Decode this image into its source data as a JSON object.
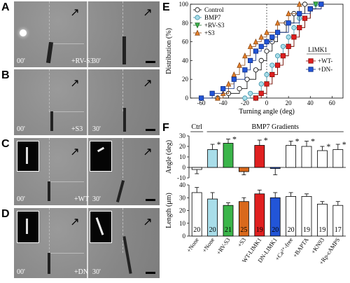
{
  "panels": {
    "A": {
      "letter": "A",
      "t0": "00'",
      "t1": "30'",
      "cond": "+RV-S3"
    },
    "B": {
      "letter": "B",
      "t0": "00'",
      "t1": "30'",
      "cond": "+S3"
    },
    "C": {
      "letter": "C",
      "t0": "00'",
      "t1": "30'",
      "cond": "+WT"
    },
    "D": {
      "letter": "D",
      "t0": "00'",
      "t1": "30'",
      "cond": "+DN"
    }
  },
  "panelE": {
    "letter": "E",
    "chart_data": {
      "type": "line",
      "xlabel": "Turning angle (deg)",
      "ylabel": "Distribution (%)",
      "xlim": [
        -70,
        70
      ],
      "ylim": [
        0,
        100
      ],
      "xticks": [
        -60,
        -40,
        -20,
        0,
        20,
        40,
        60
      ],
      "yticks": [
        0,
        20,
        40,
        60,
        80,
        100
      ],
      "legend_left": [
        "Control",
        "BMP7",
        "+RV-S3",
        "+S3"
      ],
      "legend_right_title": "LIMK1",
      "legend_right": [
        "+WT-",
        "+DN-"
      ],
      "series": [
        {
          "name": "Control",
          "color": "#ffffff",
          "stroke": "#000000",
          "marker": "circle",
          "points": [
            [
              -45,
              0
            ],
            [
              -35,
              5
            ],
            [
              -25,
              10
            ],
            [
              -18,
              20
            ],
            [
              -10,
              30
            ],
            [
              -5,
              40
            ],
            [
              0,
              50
            ],
            [
              5,
              60
            ],
            [
              10,
              70
            ],
            [
              18,
              80
            ],
            [
              25,
              90
            ],
            [
              35,
              100
            ]
          ]
        },
        {
          "name": "BMP7",
          "color": "#a8dde9",
          "stroke": "#3a8fa6",
          "marker": "circle",
          "points": [
            [
              -20,
              0
            ],
            [
              -15,
              5
            ],
            [
              -5,
              15
            ],
            [
              0,
              25
            ],
            [
              5,
              35
            ],
            [
              10,
              45
            ],
            [
              15,
              55
            ],
            [
              20,
              65
            ],
            [
              25,
              75
            ],
            [
              30,
              85
            ],
            [
              40,
              95
            ],
            [
              45,
              100
            ]
          ]
        },
        {
          "name": "+RV-S3",
          "color": "#3bb54a",
          "stroke": "#1f6b28",
          "marker": "triangle-down",
          "points": [
            [
              -10,
              0
            ],
            [
              -5,
              5
            ],
            [
              0,
              15
            ],
            [
              5,
              25
            ],
            [
              10,
              35
            ],
            [
              15,
              45
            ],
            [
              20,
              55
            ],
            [
              25,
              65
            ],
            [
              30,
              75
            ],
            [
              35,
              85
            ],
            [
              40,
              95
            ],
            [
              45,
              100
            ]
          ]
        },
        {
          "name": "+S3",
          "color": "#e8822a",
          "stroke": "#8a4612",
          "marker": "triangle-up",
          "points": [
            [
              -45,
              0
            ],
            [
              -40,
              5
            ],
            [
              -35,
              15
            ],
            [
              -30,
              25
            ],
            [
              -25,
              35
            ],
            [
              -20,
              45
            ],
            [
              -15,
              55
            ],
            [
              -10,
              60
            ],
            [
              -5,
              65
            ],
            [
              0,
              70
            ],
            [
              10,
              80
            ],
            [
              20,
              90
            ],
            [
              30,
              100
            ]
          ]
        },
        {
          "name": "+WT-",
          "color": "#e02020",
          "stroke": "#8b0000",
          "marker": "square",
          "points": [
            [
              -10,
              0
            ],
            [
              -5,
              5
            ],
            [
              0,
              15
            ],
            [
              5,
              25
            ],
            [
              10,
              35
            ],
            [
              15,
              45
            ],
            [
              20,
              55
            ],
            [
              25,
              65
            ],
            [
              30,
              75
            ],
            [
              35,
              85
            ],
            [
              40,
              95
            ],
            [
              50,
              100
            ]
          ]
        },
        {
          "name": "+DN-",
          "color": "#2255d8",
          "stroke": "#0b2a80",
          "marker": "square",
          "points": [
            [
              -60,
              0
            ],
            [
              -50,
              5
            ],
            [
              -40,
              10
            ],
            [
              -30,
              20
            ],
            [
              -20,
              30
            ],
            [
              -15,
              40
            ],
            [
              -10,
              50
            ],
            [
              -5,
              55
            ],
            [
              0,
              60
            ],
            [
              5,
              65
            ],
            [
              10,
              70
            ],
            [
              20,
              80
            ],
            [
              30,
              90
            ],
            [
              40,
              95
            ],
            [
              50,
              100
            ]
          ]
        }
      ]
    }
  },
  "panelF": {
    "letter": "F",
    "chart_data": [
      {
        "type": "bar",
        "ylabel": "Angle (deg)",
        "ylim": [
          -10,
          30
        ],
        "yticks": [
          -10,
          0,
          10,
          20,
          30
        ],
        "group_labels": [
          "Ctrl",
          "BMP7 Gradients"
        ],
        "categories": [
          "+None",
          "+None",
          "+RV-S3",
          "+S3",
          "WT-LIMK1",
          "DN-LIMK1",
          "+Ca2+-free",
          "+BAPTA",
          "+KN93",
          "+Rp-cAMPS"
        ],
        "values": [
          -2,
          17,
          23,
          -4,
          21,
          -1,
          21,
          20,
          16,
          17
        ],
        "errors": [
          4,
          5,
          4,
          3,
          5,
          6,
          4,
          5,
          4,
          5
        ],
        "stars": [
          false,
          true,
          true,
          false,
          true,
          false,
          true,
          true,
          true,
          true
        ],
        "colors": [
          "#ffffff",
          "#a8dde9",
          "#3bb54a",
          "#d9691c",
          "#e02020",
          "#2255d8",
          "#ffffff",
          "#ffffff",
          "#ffffff",
          "#ffffff"
        ]
      },
      {
        "type": "bar",
        "ylabel": "Length (μm)",
        "ylim": [
          0,
          40
        ],
        "yticks": [
          0,
          10,
          20,
          30,
          40
        ],
        "categories": [
          "+None",
          "+None",
          "+RV-S3",
          "+S3",
          "WT-LIMK1",
          "DN-LIMK1",
          "+Ca2+-free",
          "+BAPTA",
          "+KN93",
          "+Rp-cAMPS"
        ],
        "values": [
          34,
          29,
          24,
          27,
          33,
          30,
          31,
          31,
          25,
          24
        ],
        "errors": [
          4,
          5,
          2,
          3,
          3,
          4,
          3,
          2,
          2,
          3
        ],
        "n": [
          "20",
          "20",
          "21",
          "25",
          "19",
          "20",
          "20",
          "19",
          "19",
          "17"
        ],
        "colors": [
          "#ffffff",
          "#a8dde9",
          "#3bb54a",
          "#d9691c",
          "#e02020",
          "#2255d8",
          "#ffffff",
          "#ffffff",
          "#ffffff",
          "#ffffff"
        ]
      }
    ]
  }
}
